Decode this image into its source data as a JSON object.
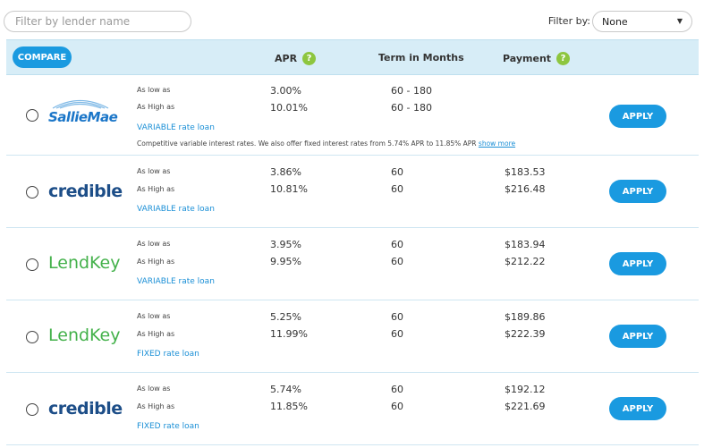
{
  "search": {
    "placeholder": "Filter by lender name"
  },
  "filter": {
    "label": "Filter by:",
    "selected": "None"
  },
  "header": {
    "compare_label": "COMPARE",
    "apr_label": "APR",
    "term_label": "Term in Months",
    "payment_label": "Payment",
    "help_glyph": "?"
  },
  "colors": {
    "accent": "#1a9ae0",
    "header_bg": "#d7edf7",
    "help_green": "#8dc63f",
    "link": "#1a8fd6"
  },
  "rows": [
    {
      "lender": "SallieMae",
      "low_label": "As low as",
      "high_label": "As High as",
      "apr_low": "3.00%",
      "apr_high": "10.01%",
      "term_low": "60 - 180",
      "term_high": "60 - 180",
      "pay_low": "",
      "pay_high": "",
      "rate_type": "VARIABLE rate loan",
      "description": "Competitive variable interest rates. We also offer fixed interest rates from 5.74% APR to 11.85% APR",
      "more_link": "show more",
      "apply_label": "APPLY"
    },
    {
      "lender": "credible",
      "low_label": "As low as",
      "high_label": "As High as",
      "apr_low": "3.86%",
      "apr_high": "10.81%",
      "term_low": "60",
      "term_high": "60",
      "pay_low": "$183.53",
      "pay_high": "$216.48",
      "rate_type": "VARIABLE rate loan",
      "apply_label": "APPLY"
    },
    {
      "lender": "LendKey",
      "low_label": "As low as",
      "high_label": "As High as",
      "apr_low": "3.95%",
      "apr_high": "9.95%",
      "term_low": "60",
      "term_high": "60",
      "pay_low": "$183.94",
      "pay_high": "$212.22",
      "rate_type": "VARIABLE rate loan",
      "apply_label": "APPLY"
    },
    {
      "lender": "LendKey",
      "low_label": "As low as",
      "high_label": "As High as",
      "apr_low": "5.25%",
      "apr_high": "11.99%",
      "term_low": "60",
      "term_high": "60",
      "pay_low": "$189.86",
      "pay_high": "$222.39",
      "rate_type": "FIXED rate loan",
      "apply_label": "APPLY"
    },
    {
      "lender": "credible",
      "low_label": "As low as",
      "high_label": "As High as",
      "apr_low": "5.74%",
      "apr_high": "11.85%",
      "term_low": "60",
      "term_high": "60",
      "pay_low": "$192.12",
      "pay_high": "$221.69",
      "rate_type": "FIXED rate loan",
      "apply_label": "APPLY"
    }
  ]
}
